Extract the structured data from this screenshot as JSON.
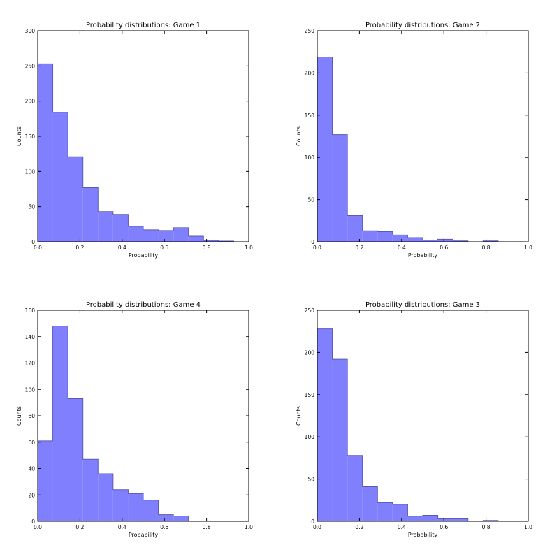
{
  "chart_data": [
    {
      "type": "bar",
      "title": "Probability distributions: Game 1",
      "xlabel": "Probability",
      "ylabel": "Counts",
      "xlim": [
        0,
        1.0
      ],
      "ylim": [
        0,
        300
      ],
      "x_ticks": [
        "0.0",
        "0.2",
        "0.4",
        "0.6",
        "0.8",
        "1.0"
      ],
      "y_ticks": [
        "0",
        "50",
        "100",
        "150",
        "200",
        "250",
        "300"
      ],
      "bin_edges": [
        0,
        0.0714,
        0.1429,
        0.2143,
        0.2857,
        0.3571,
        0.4286,
        0.5,
        0.5714,
        0.6429,
        0.7143,
        0.7857,
        0.8571,
        0.9286,
        1.0
      ],
      "values": [
        253,
        184,
        121,
        77,
        43,
        39,
        22,
        17,
        16,
        20,
        8,
        2,
        1,
        0
      ],
      "color": "#8080ff",
      "grid": false
    },
    {
      "type": "bar",
      "title": "Probability distributions: Game 2",
      "xlabel": "Probability",
      "ylabel": "Counts",
      "xlim": [
        0,
        1.0
      ],
      "ylim": [
        0,
        250
      ],
      "x_ticks": [
        "0.0",
        "0.2",
        "0.4",
        "0.6",
        "0.8",
        "1.0"
      ],
      "y_ticks": [
        "0",
        "50",
        "100",
        "150",
        "200",
        "250"
      ],
      "bin_edges": [
        0,
        0.0714,
        0.1429,
        0.2143,
        0.2857,
        0.3571,
        0.4286,
        0.5,
        0.5714,
        0.6429,
        0.7143,
        0.7857,
        0.8571,
        0.9286,
        1.0
      ],
      "values": [
        219,
        127,
        31,
        13,
        12,
        8,
        5,
        2,
        3,
        1,
        0,
        1,
        0,
        0
      ],
      "color": "#8080ff",
      "grid": false
    },
    {
      "type": "bar",
      "title": "Probability distributions: Game 4",
      "xlabel": "Probability",
      "ylabel": "Counts",
      "xlim": [
        0,
        1.0
      ],
      "ylim": [
        0,
        160
      ],
      "x_ticks": [
        "0.0",
        "0.2",
        "0.4",
        "0.6",
        "0.8",
        "1.0"
      ],
      "y_ticks": [
        "0",
        "20",
        "40",
        "60",
        "80",
        "100",
        "120",
        "140",
        "160"
      ],
      "bin_edges": [
        0,
        0.0714,
        0.1429,
        0.2143,
        0.2857,
        0.3571,
        0.4286,
        0.5,
        0.5714,
        0.6429,
        0.7143,
        0.7857,
        0.8571,
        0.9286,
        1.0
      ],
      "values": [
        61,
        148,
        93,
        47,
        36,
        24,
        21,
        16,
        5,
        4,
        0,
        0,
        0,
        0
      ],
      "color": "#8080ff",
      "grid": false
    },
    {
      "type": "bar",
      "title": "Probability distributions: Game 3",
      "xlabel": "Probability",
      "ylabel": "Counts",
      "xlim": [
        0,
        1.0
      ],
      "ylim": [
        0,
        250
      ],
      "x_ticks": [
        "0.0",
        "0.2",
        "0.4",
        "0.6",
        "0.8",
        "1.0"
      ],
      "y_ticks": [
        "0",
        "50",
        "100",
        "150",
        "200",
        "250"
      ],
      "bin_edges": [
        0,
        0.0714,
        0.1429,
        0.2143,
        0.2857,
        0.3571,
        0.4286,
        0.5,
        0.5714,
        0.6429,
        0.7143,
        0.7857,
        0.8571,
        0.9286,
        1.0
      ],
      "values": [
        228,
        192,
        78,
        41,
        22,
        20,
        6,
        7,
        3,
        3,
        0,
        1,
        0,
        0
      ],
      "color": "#8080ff",
      "grid": false
    }
  ]
}
